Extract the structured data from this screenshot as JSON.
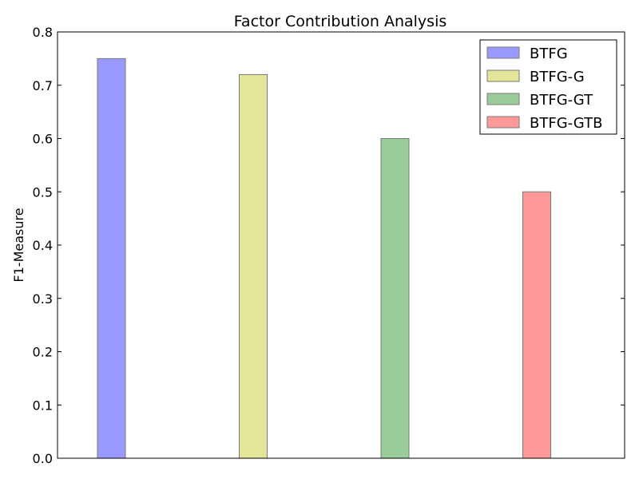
{
  "chart_data": {
    "type": "bar",
    "title": "Factor Contribution Analysis",
    "xlabel": "",
    "ylabel": "F1-Measure",
    "ylim": [
      0,
      0.8
    ],
    "yticks": [
      "0.0",
      "0.1",
      "0.2",
      "0.3",
      "0.4",
      "0.5",
      "0.6",
      "0.7",
      "0.8"
    ],
    "grid": false,
    "legend_position": "top-right",
    "series": [
      {
        "name": "BTFG",
        "value": 0.75,
        "color": "#9999ff"
      },
      {
        "name": "BTFG-G",
        "value": 0.72,
        "color": "#e3e699"
      },
      {
        "name": "BTFG-GT",
        "value": 0.6,
        "color": "#99cc99"
      },
      {
        "name": "BTFG-GTB",
        "value": 0.5,
        "color": "#ff9999"
      }
    ]
  }
}
